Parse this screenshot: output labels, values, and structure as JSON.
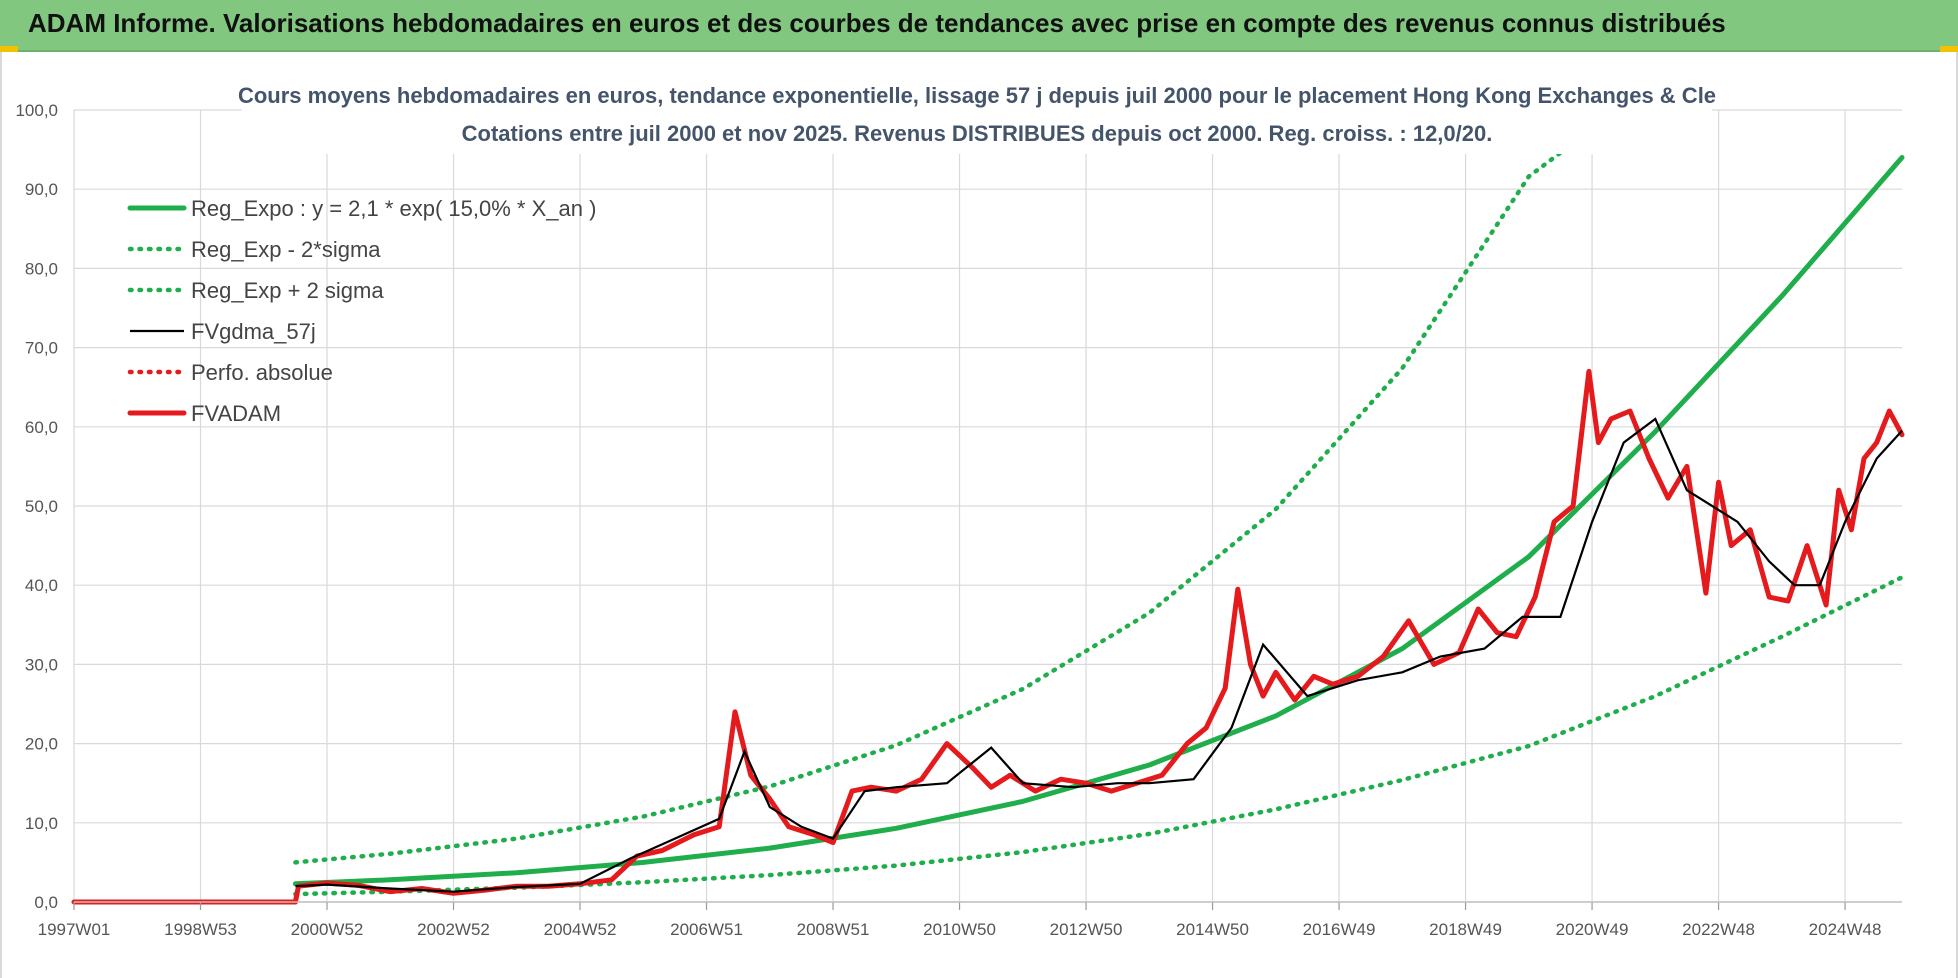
{
  "banner": {
    "title": "ADAM Informe. Valorisations hebdomadaires en euros et des courbes de tendances avec prise en compte des revenus connus distribués"
  },
  "colors": {
    "banner": "#82c77f",
    "green": "#1fae4b",
    "red": "#e41a1c",
    "black": "#000000",
    "grid": "#d9d9d9"
  },
  "chart_data": {
    "type": "line",
    "title": "Cours moyens hebdomadaires en euros, tendance exponentielle, lissage 57 j depuis juil 2000 pour le placement Hong Kong Exchanges & Cle",
    "subtitle": "Cotations entre juil 2000 et nov 2025. Revenus DISTRIBUES depuis oct 2000. Reg. croiss. : 12,0/20.",
    "xlabel": "",
    "ylabel": "",
    "xlim": [
      1997.0,
      2025.9
    ],
    "ylim": [
      0,
      100
    ],
    "grid": true,
    "legend_position": "top-left",
    "x_tick_labels": [
      "1997W01",
      "1998W53",
      "2000W52",
      "2002W52",
      "2004W52",
      "2006W51",
      "2008W51",
      "2010W50",
      "2012W50",
      "2014W50",
      "2016W49",
      "2018W49",
      "2020W49",
      "2022W48",
      "2024W48"
    ],
    "x_tick_years": [
      1997.0,
      1999.0,
      2001.0,
      2003.0,
      2005.0,
      2007.0,
      2009.0,
      2011.0,
      2013.0,
      2015.0,
      2017.0,
      2019.0,
      2021.0,
      2023.0,
      2025.0
    ],
    "y_tick_labels": [
      "0,0",
      "10,0",
      "20,0",
      "30,0",
      "40,0",
      "50,0",
      "60,0",
      "70,0",
      "80,0",
      "90,0",
      "100,0"
    ],
    "y_ticks": [
      0,
      10,
      20,
      30,
      40,
      50,
      60,
      70,
      80,
      90,
      100
    ],
    "series": [
      {
        "name": "Reg_Expo : y = 2,1 * exp( 15,0% *  X_an )",
        "style": "solid-thick",
        "color": "#1fae4b",
        "x": [
          2000.5,
          2002,
          2004,
          2006,
          2008,
          2010,
          2012,
          2014,
          2016,
          2018,
          2020,
          2022,
          2024,
          2025.9
        ],
        "values": [
          2.3,
          2.8,
          3.7,
          5.0,
          6.8,
          9.3,
          12.7,
          17.3,
          23.5,
          32.0,
          43.6,
          59.4,
          76.5,
          94.0
        ]
      },
      {
        "name": "Reg_Exp - 2*sigma",
        "style": "dotted",
        "color": "#1fae4b",
        "x": [
          2000.5,
          2002,
          2004,
          2006,
          2008,
          2010,
          2012,
          2014,
          2016,
          2018,
          2020,
          2022,
          2024,
          2025.9
        ],
        "values": [
          1.0,
          1.3,
          1.8,
          2.5,
          3.4,
          4.6,
          6.3,
          8.6,
          11.7,
          15.4,
          19.7,
          26.0,
          33.5,
          41.0
        ]
      },
      {
        "name": "Reg_Exp + 2 sigma",
        "style": "dotted",
        "color": "#1fae4b",
        "x": [
          2000.5,
          2002,
          2004,
          2006,
          2008,
          2010,
          2012,
          2014,
          2016,
          2018,
          2020,
          2021.4
        ],
        "values": [
          5.0,
          6.1,
          8.0,
          10.8,
          14.6,
          19.8,
          26.9,
          36.5,
          49.6,
          67.4,
          91.6,
          100.0
        ]
      },
      {
        "name": "FVgdma_57j",
        "style": "solid-thin",
        "color": "#000000",
        "x": [
          2000.5,
          2001,
          2002,
          2003,
          2004,
          2005,
          2005.8,
          2006.5,
          2007.2,
          2007.6,
          2008,
          2008.5,
          2009,
          2009.5,
          2010,
          2010.8,
          2011.5,
          2012,
          2012.8,
          2013.5,
          2014,
          2014.7,
          2015.3,
          2015.8,
          2016.5,
          2017.3,
          2018,
          2018.6,
          2019.3,
          2019.9,
          2020.5,
          2021,
          2021.5,
          2022,
          2022.5,
          2023.3,
          2023.8,
          2024.2,
          2024.6,
          2025.0,
          2025.5,
          2025.9
        ],
        "values": [
          2.0,
          2.2,
          1.7,
          1.3,
          1.9,
          2.3,
          5.5,
          8.0,
          10.5,
          19.0,
          12.0,
          9.5,
          8.0,
          14.0,
          14.5,
          15.0,
          19.5,
          15.0,
          14.5,
          15.0,
          15.0,
          15.5,
          22.0,
          32.5,
          26.0,
          28.0,
          29.0,
          31.0,
          32.0,
          36.0,
          36.0,
          48.0,
          58.0,
          61.0,
          52.0,
          48.0,
          43.0,
          40.0,
          40.0,
          48.0,
          56.0,
          59.5
        ]
      },
      {
        "name": "Perfo. absolue",
        "style": "dotted",
        "color": "#e41a1c",
        "x": [],
        "values": []
      },
      {
        "name": "FVADAM",
        "style": "solid-thick",
        "color": "#e41a1c",
        "x": [
          1997.0,
          2000.5,
          2000.55,
          2001,
          2001.5,
          2002,
          2002.5,
          2003,
          2003.5,
          2004,
          2004.5,
          2005,
          2005.5,
          2005.9,
          2006.3,
          2006.8,
          2007.2,
          2007.45,
          2007.7,
          2008,
          2008.3,
          2008.7,
          2009,
          2009.3,
          2009.6,
          2010,
          2010.4,
          2010.8,
          2011.2,
          2011.5,
          2011.8,
          2012.2,
          2012.6,
          2013,
          2013.4,
          2013.8,
          2014.2,
          2014.6,
          2014.9,
          2015.2,
          2015.4,
          2015.6,
          2015.8,
          2016.0,
          2016.3,
          2016.6,
          2016.9,
          2017.3,
          2017.7,
          2018.1,
          2018.5,
          2018.9,
          2019.2,
          2019.5,
          2019.8,
          2020.1,
          2020.4,
          2020.7,
          2020.95,
          2021.1,
          2021.3,
          2021.6,
          2021.9,
          2022.2,
          2022.5,
          2022.8,
          2023.0,
          2023.2,
          2023.5,
          2023.8,
          2024.1,
          2024.4,
          2024.7,
          2024.9,
          2025.1,
          2025.3,
          2025.5,
          2025.7,
          2025.9
        ],
        "values": [
          0,
          0,
          2.0,
          2.4,
          2.1,
          1.3,
          1.7,
          1.1,
          1.5,
          2.0,
          2.0,
          2.3,
          2.8,
          5.8,
          6.5,
          8.5,
          9.5,
          24.0,
          16.0,
          13.0,
          9.5,
          8.5,
          7.5,
          14.0,
          14.5,
          14.0,
          15.5,
          20.0,
          17.0,
          14.5,
          16.0,
          14.0,
          15.5,
          15.0,
          14.0,
          15.0,
          16.0,
          20.0,
          22.0,
          27.0,
          39.5,
          30.0,
          26.0,
          29.0,
          25.5,
          28.5,
          27.5,
          28.5,
          31.0,
          35.5,
          30.0,
          31.5,
          37.0,
          34.0,
          33.5,
          38.5,
          48.0,
          50.0,
          67.0,
          58.0,
          61.0,
          62.0,
          56.0,
          51.0,
          55.0,
          39.0,
          53.0,
          45.0,
          47.0,
          38.5,
          38.0,
          45.0,
          37.5,
          52.0,
          47.0,
          56.0,
          58.0,
          62.0,
          59.0
        ]
      }
    ]
  }
}
